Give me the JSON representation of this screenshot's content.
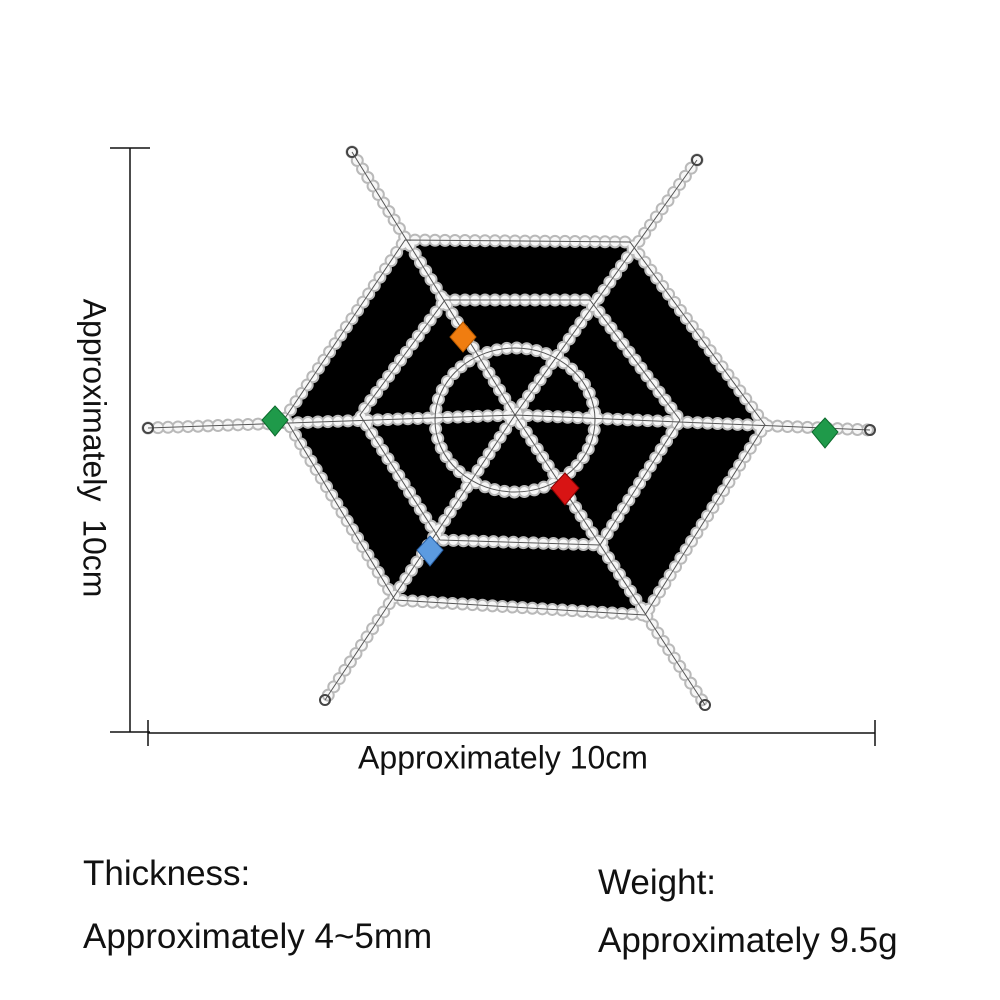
{
  "dimensions": {
    "height": "Approximately  10cm",
    "width": "Approximately 10cm"
  },
  "specs": {
    "thickness": {
      "label": "Thickness:",
      "value": "Approximately 4~5mm"
    },
    "weight": {
      "label": "Weight:",
      "value": "Approximately 9.5g"
    }
  }
}
